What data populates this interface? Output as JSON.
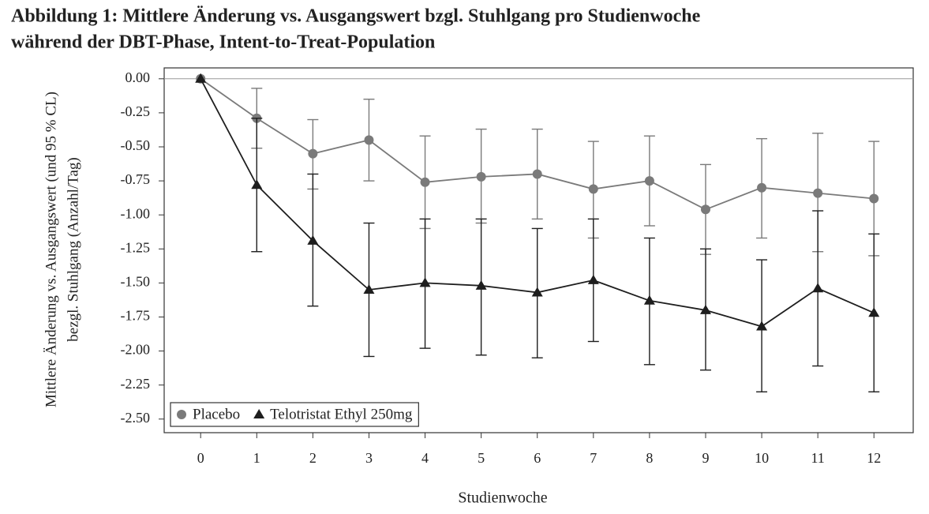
{
  "chart_data": {
    "type": "line",
    "title": [
      "Abbildung 1: Mittlere Änderung vs. Ausgangswert bzgl. Stuhlgang pro Studienwoche",
      "während der DBT-Phase, Intent-to-Treat-Population"
    ],
    "xlabel": "Studienwoche",
    "ylabel": [
      "Mittlere Änderung vs. Ausgangswert (und 95 % CL)",
      "bezgl. Stuhlgang (Anzahl/Tag)"
    ],
    "x": [
      0,
      1,
      2,
      3,
      4,
      5,
      6,
      7,
      8,
      9,
      10,
      11,
      12
    ],
    "xlim": [
      -0.65,
      12.7
    ],
    "xticks": [
      0,
      1,
      2,
      3,
      4,
      5,
      6,
      7,
      8,
      9,
      10,
      11,
      12
    ],
    "ylim": [
      -2.6,
      0.08
    ],
    "yticks": [
      {
        "value": 0,
        "label": "0.00"
      },
      {
        "value": -0.25,
        "label": "-0.25"
      },
      {
        "value": -0.5,
        "label": "-0.50"
      },
      {
        "value": -0.75,
        "label": "-0.75"
      },
      {
        "value": -1,
        "label": "-1.00"
      },
      {
        "value": -1.25,
        "label": "-1.25"
      },
      {
        "value": -1.5,
        "label": "-1.50"
      },
      {
        "value": -1.75,
        "label": "-1.75"
      },
      {
        "value": -2,
        "label": "-2.00"
      },
      {
        "value": -2.25,
        "label": "-2.25"
      },
      {
        "value": -2.5,
        "label": "-2.50"
      }
    ],
    "reference_line": 0,
    "legend": "lower left",
    "series": [
      {
        "name": "Placebo",
        "color": "#7a7a7a",
        "marker": "circle",
        "values": [
          0,
          -0.29,
          -0.55,
          -0.45,
          -0.76,
          -0.72,
          -0.7,
          -0.81,
          -0.75,
          -0.96,
          -0.8,
          -0.84,
          -0.88
        ],
        "upper": [
          null,
          -0.07,
          -0.3,
          -0.15,
          -0.42,
          -0.37,
          -0.37,
          -0.46,
          -0.42,
          -0.63,
          -0.44,
          -0.4,
          -0.46
        ],
        "lower": [
          null,
          -0.51,
          -0.81,
          -0.75,
          -1.1,
          -1.06,
          -1.03,
          -1.17,
          -1.08,
          -1.29,
          -1.17,
          -1.27,
          -1.3
        ]
      },
      {
        "name": "Telotristat Ethyl 250mg",
        "color": "#1e1e1e",
        "marker": "triangle",
        "values": [
          0,
          -0.78,
          -1.19,
          -1.55,
          -1.5,
          -1.52,
          -1.57,
          -1.48,
          -1.63,
          -1.7,
          -1.82,
          -1.54,
          -1.72
        ],
        "upper": [
          null,
          -0.29,
          -0.7,
          -1.06,
          -1.03,
          -1.03,
          -1.1,
          -1.03,
          -1.17,
          -1.25,
          -1.33,
          -0.97,
          -1.14
        ],
        "lower": [
          null,
          -1.27,
          -1.67,
          -2.04,
          -1.98,
          -2.03,
          -2.05,
          -1.93,
          -2.1,
          -2.14,
          -2.3,
          -2.11,
          -2.3
        ]
      }
    ]
  }
}
